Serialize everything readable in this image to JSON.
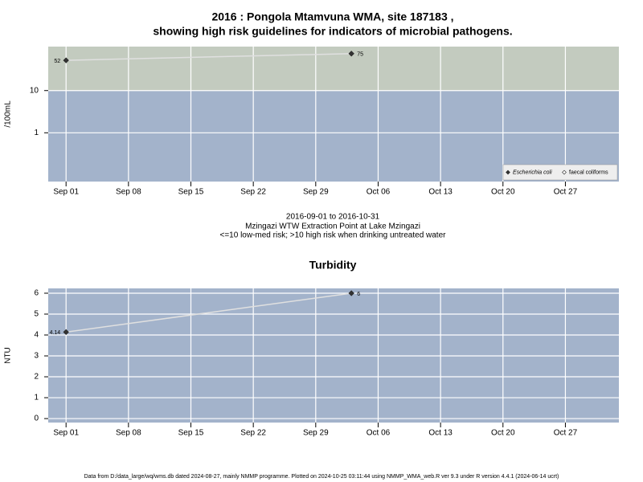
{
  "chart_data": [
    {
      "type": "line",
      "title": [
        "2016 : Pongola Mtamvuna WMA, site 187183 ,",
        "showing high risk guidelines for indicators of microbial pathogens."
      ],
      "subtitle": [
        "2016-09-01 to 2016-10-31",
        "Mzingazi WTW Extraction Point at Lake Mzingazi",
        "<=10 low-med risk; >10 high risk when drinking untreated water"
      ],
      "y_label": "/100mL",
      "log_y": true,
      "ylim": [
        0.07,
        110
      ],
      "yticks": [
        1,
        10
      ],
      "threshold": 10,
      "background": "#a3b3cb",
      "threshold_color": "#c3cbbf",
      "grid": true,
      "grid_color": "#ffffff",
      "x": [
        "2016-09-01",
        "2016-10-03"
      ],
      "xlim": [
        "2016-08-30",
        "2016-11-02"
      ],
      "xticks": [
        {
          "value": "2016-09-01",
          "label": "Sep 01"
        },
        {
          "value": "2016-09-08",
          "label": "Sep 08"
        },
        {
          "value": "2016-09-15",
          "label": "Sep 15"
        },
        {
          "value": "2016-09-22",
          "label": "Sep 22"
        },
        {
          "value": "2016-09-29",
          "label": "Sep 29"
        },
        {
          "value": "2016-10-06",
          "label": "Oct 06"
        },
        {
          "value": "2016-10-13",
          "label": "Oct 13"
        },
        {
          "value": "2016-10-20",
          "label": "Oct 20"
        },
        {
          "value": "2016-10-27",
          "label": "Oct 27"
        }
      ],
      "legend": "lower right",
      "series": [
        {
          "name": "Escherichia coli",
          "italic": true,
          "marker": "filled",
          "color": "#e0e0e0",
          "values": [
            52,
            75
          ]
        },
        {
          "name": "faecal coliforms",
          "italic": false,
          "marker": "open",
          "color": "#e0e0e0",
          "values": [
            null,
            null
          ]
        }
      ]
    },
    {
      "type": "line",
      "title": [
        "Turbidity"
      ],
      "y_label": "NTU",
      "log_y": false,
      "ylim": [
        -0.19,
        6.23
      ],
      "yticks": [
        0,
        1,
        2,
        3,
        4,
        5,
        6
      ],
      "background": "#a3b3cb",
      "grid": true,
      "grid_color": "#ffffff",
      "x": [
        "2016-09-01",
        "2016-10-03"
      ],
      "xlim": [
        "2016-08-30",
        "2016-11-02"
      ],
      "xticks": [
        {
          "value": "2016-09-01",
          "label": "Sep 01"
        },
        {
          "value": "2016-09-08",
          "label": "Sep 08"
        },
        {
          "value": "2016-09-15",
          "label": "Sep 15"
        },
        {
          "value": "2016-09-22",
          "label": "Sep 22"
        },
        {
          "value": "2016-09-29",
          "label": "Sep 29"
        },
        {
          "value": "2016-10-06",
          "label": "Oct 06"
        },
        {
          "value": "2016-10-13",
          "label": "Oct 13"
        },
        {
          "value": "2016-10-20",
          "label": "Oct 20"
        },
        {
          "value": "2016-10-27",
          "label": "Oct 27"
        }
      ],
      "series": [
        {
          "name": "Turbidity",
          "marker": "filled",
          "color": "#e0e0e0",
          "values": [
            4.14,
            6
          ]
        }
      ]
    }
  ],
  "footer": "Data from D:/data_large/wq/wms.db dated 2024-08-27, mainly NMMP programme. Plotted on 2024-10-25 03:11:44 using NMMP_WMA_web.R ver 9.3 under R version 4.4.1 (2024-06-14 ucrt)"
}
